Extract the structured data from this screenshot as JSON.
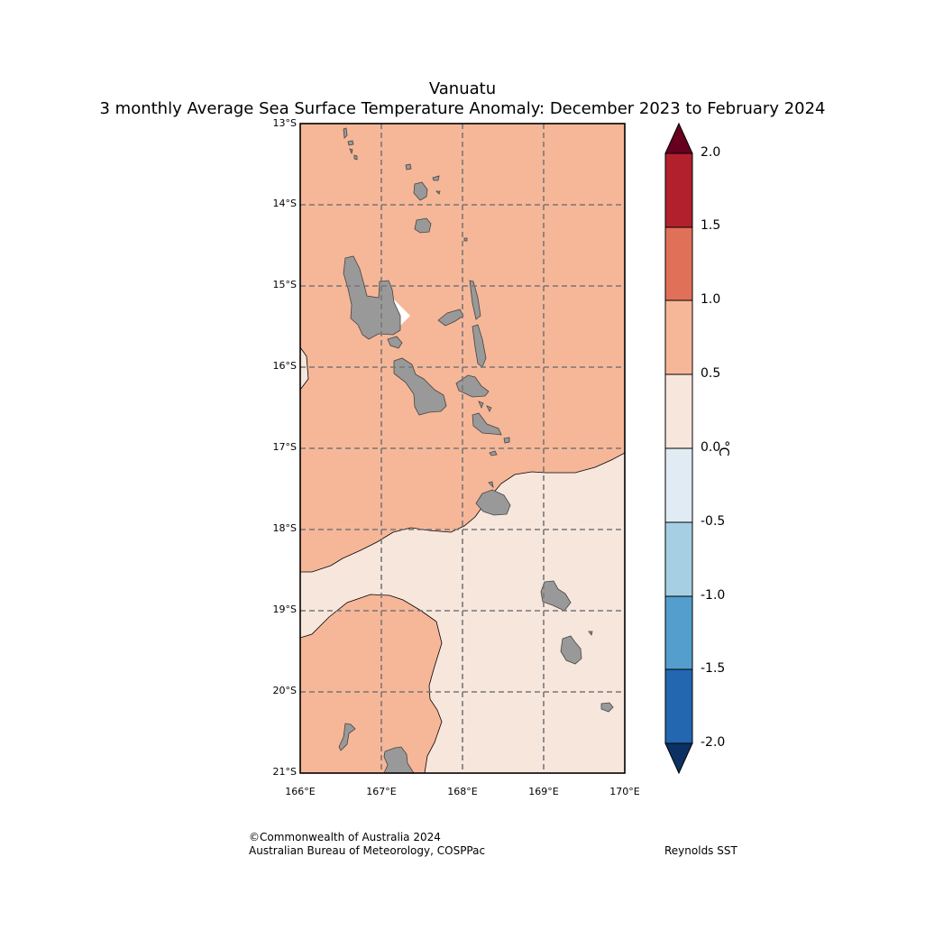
{
  "title": {
    "line1": "Vanuatu",
    "line2": "3 monthly Average Sea Surface Temperature Anomaly: December 2023 to February 2024"
  },
  "map": {
    "latitude_labels": [
      "13°S",
      "14°S",
      "15°S",
      "16°S",
      "17°S",
      "18°S",
      "19°S",
      "20°S",
      "21°S"
    ],
    "longitude_labels": [
      "166°E",
      "167°E",
      "168°E",
      "169°E",
      "170°E"
    ],
    "ocean_color": "#f6b798",
    "cool_anomaly_color": "#f7e6dc",
    "land_color": "#999999"
  },
  "colorbar": {
    "unit": "°C",
    "ticks": [
      "2.0",
      "1.5",
      "1.0",
      "0.5",
      "0.0",
      "-0.5",
      "-1.0",
      "-1.5",
      "-2.0"
    ],
    "colors": [
      "#b2202d",
      "#e17059",
      "#f6b798",
      "#f7e6dc",
      "#e1ebf3",
      "#a6cfe4",
      "#539ecd",
      "#2267b0"
    ],
    "over_color": "#67001f",
    "under_color": "#0b3263"
  },
  "footer": {
    "copyright": "©Commonwealth of Australia 2024",
    "agency": "Australian Bureau of Meteorology, COSPPac",
    "source": "Reynolds SST"
  }
}
